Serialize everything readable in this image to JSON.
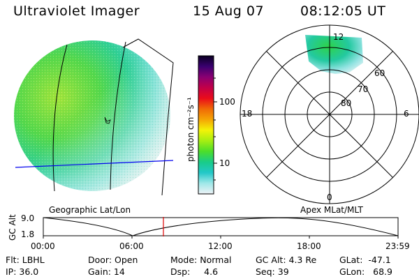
{
  "header": {
    "title": "Ultraviolet Imager",
    "date": "15 Aug 07",
    "time": "08:12:05 UT"
  },
  "globe": {
    "caption": "Geographic Lat/Lon"
  },
  "colorbar": {
    "unit": "photon cm⁻²s⁻¹",
    "ticks": [
      "100",
      "10"
    ],
    "stops": [
      "#eef2f6",
      "#9fe8e8",
      "#22c8c8",
      "#19cc88",
      "#4cde2a",
      "#a6ee12",
      "#f3f308",
      "#f5a505",
      "#f06a06",
      "#ea0c1a",
      "#c20048",
      "#8a0072",
      "#3a0070",
      "#0a0021"
    ]
  },
  "polar": {
    "caption": "Apex MLat/MLT",
    "mlt_labels": [
      "12",
      "18",
      "6",
      "0"
    ],
    "mlat_labels": [
      "60",
      "70",
      "80"
    ]
  },
  "plot": {
    "ylabel": "GC Alt",
    "y_ticks": [
      "9.0",
      "1.8"
    ],
    "x_ticks": [
      "00:00",
      "06:00",
      "12:00",
      "18:00",
      "23:59"
    ],
    "marker_time": "08:12:05"
  },
  "status": {
    "flt": "Flt: LBHL",
    "ip": "IP: 36.0",
    "door": "Door: Open",
    "gain": "Gain: 14",
    "mode": "Mode: Normal",
    "dsp": "Dsp:     4.6",
    "gcalt": "GC Alt: 4.3 Re",
    "seq": "Seq: 39",
    "glat": "GLat:  -47.1",
    "glon": "GLon:   68.9"
  },
  "colors": {
    "background": "#ffffff",
    "marker": "#dd0000",
    "latitude_line": "#0000ee"
  }
}
